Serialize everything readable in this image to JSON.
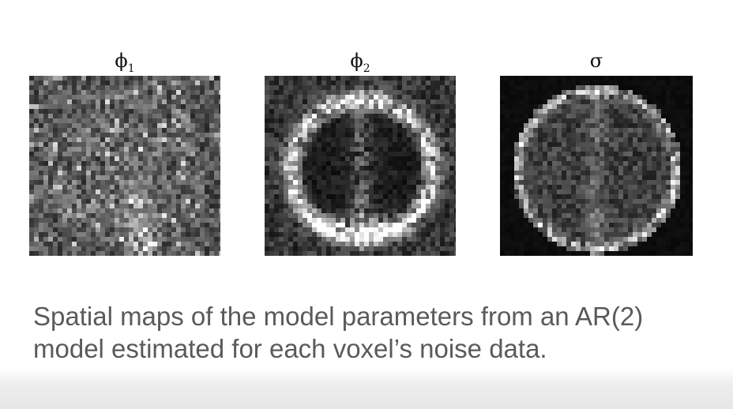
{
  "panels": [
    {
      "symbol": "ϕ",
      "subscript": "1"
    },
    {
      "symbol": "ϕ",
      "subscript": "2"
    },
    {
      "symbol": "σ",
      "subscript": ""
    }
  ],
  "caption": {
    "line1": "Spatial maps of the model parameters from an AR(2)",
    "line2": "model estimated for each voxel’s noise data."
  }
}
